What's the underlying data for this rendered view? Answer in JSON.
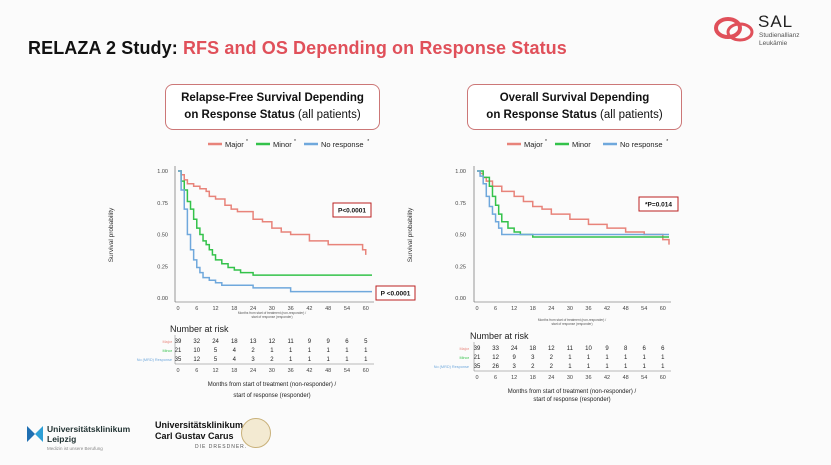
{
  "slide": {
    "title_prefix": "RELAZA 2 Study: ",
    "title_highlight": "RFS and OS Depending on Response Status",
    "logo": {
      "name": "SAL",
      "sub_line1": "Studienallianz",
      "sub_line2": "Leukämie"
    },
    "footer": {
      "ul_name_line1": "Universitätsklinikum",
      "ul_name_line2": "Leipzig",
      "ul_tagline": "Medizin ist unsere Berufung",
      "ukd_name_line1": "Universitätsklinikum",
      "ukd_name_line2": "Carl Gustav Carus",
      "ukd_tagline": "DIE DRESDNER."
    }
  },
  "colors": {
    "major": "#e8837a",
    "minor": "#33c24a",
    "none": "#6fa8dc",
    "accent": "#e0505a"
  },
  "chart_data": [
    {
      "type": "line",
      "title_line1": "Relapse-Free Survival Depending",
      "title_line2": "on Response Status",
      "title_suffix": " (all patients)",
      "legend": [
        {
          "label": "Major",
          "mark": "*"
        },
        {
          "label": "Minor",
          "mark": "*"
        },
        {
          "label": "No response",
          "mark": "*"
        }
      ],
      "ylabel": "Survival probability",
      "xlabel_line1": "Months from start of treatment (non-responder) /",
      "xlabel_line2": "start of response (responder)",
      "inner_xlabel_line1": "Months from start of treatment (non-responder) /",
      "inner_xlabel_line2": "start of response (responder)",
      "ylim": [
        0,
        1
      ],
      "xlim": [
        0,
        62
      ],
      "yticks": [
        "0.00",
        "0.25",
        "0.50",
        "0.75",
        "1.00"
      ],
      "xticks": [
        "0",
        "6",
        "12",
        "18",
        "24",
        "30",
        "36",
        "42",
        "48",
        "54",
        "60"
      ],
      "pvalues": [
        "P<0.0001",
        "P <0.0001"
      ],
      "series": [
        {
          "name": "Major",
          "x": [
            0,
            1,
            2,
            3,
            5,
            7,
            9,
            10,
            12,
            15,
            17,
            19,
            24,
            27,
            30,
            33,
            36,
            42,
            48,
            54,
            59,
            60
          ],
          "y": [
            1.0,
            0.97,
            0.93,
            0.9,
            0.88,
            0.86,
            0.84,
            0.8,
            0.78,
            0.73,
            0.7,
            0.68,
            0.62,
            0.6,
            0.55,
            0.52,
            0.5,
            0.45,
            0.42,
            0.42,
            0.38,
            0.34
          ]
        },
        {
          "name": "Minor",
          "x": [
            0,
            1,
            2,
            3,
            4,
            5,
            6,
            7,
            8,
            9,
            10,
            11,
            12,
            14,
            16,
            18,
            20,
            24,
            30,
            36,
            48,
            62
          ],
          "y": [
            1.0,
            0.92,
            0.85,
            0.76,
            0.7,
            0.62,
            0.55,
            0.5,
            0.45,
            0.42,
            0.38,
            0.34,
            0.3,
            0.27,
            0.24,
            0.22,
            0.2,
            0.18,
            0.18,
            0.18,
            0.18,
            0.18
          ]
        },
        {
          "name": "No response",
          "x": [
            0,
            1,
            2,
            3,
            4,
            5,
            6,
            7,
            8,
            10,
            12,
            14,
            16,
            18,
            24,
            30,
            36,
            42,
            48,
            62
          ],
          "y": [
            1.0,
            0.85,
            0.7,
            0.5,
            0.38,
            0.3,
            0.24,
            0.2,
            0.16,
            0.14,
            0.12,
            0.1,
            0.1,
            0.1,
            0.08,
            0.08,
            0.05,
            0.05,
            0.05,
            0.05
          ]
        }
      ],
      "risk_table": {
        "title": "Number at risk",
        "rows": [
          {
            "label": "Major",
            "values": [
              "39",
              "32",
              "24",
              "18",
              "13",
              "12",
              "11",
              "9",
              "9",
              "6",
              "5"
            ]
          },
          {
            "label": "Minor",
            "values": [
              "21",
              "10",
              "5",
              "4",
              "2",
              "1",
              "1",
              "1",
              "1",
              "1",
              "1"
            ]
          },
          {
            "label": "No (MRD) Response",
            "values": [
              "35",
              "12",
              "5",
              "4",
              "3",
              "2",
              "1",
              "1",
              "1",
              "1",
              "1"
            ]
          }
        ],
        "xticks": [
          "0",
          "6",
          "12",
          "18",
          "24",
          "30",
          "36",
          "42",
          "48",
          "54",
          "60"
        ]
      }
    },
    {
      "type": "line",
      "title_line1": "Overall Survival Depending",
      "title_line2": "on Response Status",
      "title_suffix": " (all patients)",
      "legend": [
        {
          "label": "Major",
          "mark": "*"
        },
        {
          "label": "Minor",
          "mark": ""
        },
        {
          "label": "No response",
          "mark": "*"
        }
      ],
      "ylabel": "Survival probability",
      "xlabel_line1": "Months from start of treatment (non-responder) /",
      "xlabel_line2": "start of response (responder)",
      "inner_xlabel_line1": "Months from start of treatment (non-responder) /",
      "inner_xlabel_line2": "start of response (responder)",
      "ylim": [
        0,
        1
      ],
      "xlim": [
        0,
        62
      ],
      "yticks": [
        "0.00",
        "0.25",
        "0.50",
        "0.75",
        "1.00"
      ],
      "xticks": [
        "0",
        "6",
        "12",
        "18",
        "24",
        "30",
        "36",
        "42",
        "48",
        "54",
        "60"
      ],
      "pvalues": [
        "*P=0.014"
      ],
      "series": [
        {
          "name": "Major",
          "x": [
            0,
            1,
            2,
            3,
            5,
            8,
            12,
            15,
            18,
            21,
            24,
            30,
            36,
            42,
            48,
            54,
            60,
            62
          ],
          "y": [
            1.0,
            0.98,
            0.95,
            0.92,
            0.88,
            0.84,
            0.8,
            0.76,
            0.72,
            0.7,
            0.66,
            0.62,
            0.58,
            0.55,
            0.52,
            0.5,
            0.46,
            0.42
          ]
        },
        {
          "name": "Minor",
          "x": [
            0,
            2,
            4,
            5,
            6,
            7,
            8,
            10,
            12,
            14,
            18,
            30,
            48,
            62
          ],
          "y": [
            1.0,
            0.95,
            0.88,
            0.8,
            0.73,
            0.66,
            0.6,
            0.55,
            0.52,
            0.5,
            0.48,
            0.48,
            0.48,
            0.48
          ]
        },
        {
          "name": "No response",
          "x": [
            0,
            1,
            2,
            3,
            4,
            5,
            6,
            7,
            8,
            9,
            12,
            18,
            30,
            48,
            62
          ],
          "y": [
            1.0,
            0.96,
            0.9,
            0.8,
            0.72,
            0.66,
            0.6,
            0.55,
            0.5,
            0.5,
            0.5,
            0.5,
            0.5,
            0.5,
            0.5
          ]
        }
      ],
      "risk_table": {
        "title": "Number at risk",
        "rows": [
          {
            "label": "Major",
            "values": [
              "39",
              "33",
              "24",
              "18",
              "12",
              "11",
              "10",
              "9",
              "8",
              "6",
              "6"
            ]
          },
          {
            "label": "Minor",
            "values": [
              "21",
              "12",
              "9",
              "3",
              "2",
              "1",
              "1",
              "1",
              "1",
              "1",
              "1"
            ]
          },
          {
            "label": "No (MRD) Response",
            "values": [
              "35",
              "26",
              "3",
              "2",
              "2",
              "1",
              "1",
              "1",
              "1",
              "1",
              "1"
            ]
          }
        ],
        "xticks": [
          "0",
          "6",
          "12",
          "18",
          "24",
          "30",
          "36",
          "42",
          "48",
          "54",
          "60"
        ]
      }
    }
  ]
}
